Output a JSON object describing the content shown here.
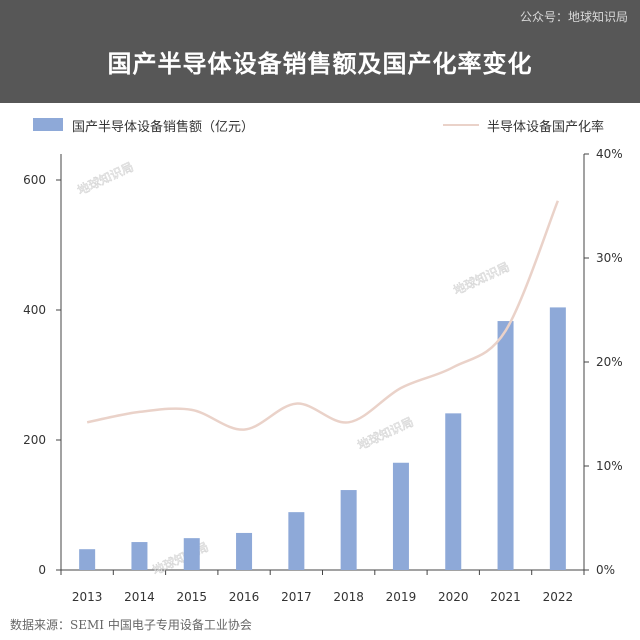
{
  "header": {
    "title": "国产半导体设备销售额及国产化率变化",
    "source_top": "公众号：地球知识局"
  },
  "legend": {
    "bar_label": "国产半导体设备销售额（亿元）",
    "line_label": "半导体设备国产化率"
  },
  "footer": {
    "source": "数据来源：SEMI 中国电子专用设备工业协会"
  },
  "watermark": "地球知识局",
  "colors": {
    "bar": "#8ea9d8",
    "line": "#ead2c9",
    "header": "#575757"
  },
  "chart_data": {
    "type": "bar",
    "title": "国产半导体设备销售额及国产化率变化",
    "categories": [
      "2013",
      "2014",
      "2015",
      "2016",
      "2017",
      "2018",
      "2019",
      "2020",
      "2021",
      "2022"
    ],
    "series": [
      {
        "name": "国产半导体设备销售额（亿元）",
        "type": "bar",
        "axis": "left",
        "values": [
          32,
          43,
          49,
          57,
          89,
          123,
          165,
          241,
          383,
          404
        ]
      },
      {
        "name": "半导体设备国产化率",
        "type": "line",
        "axis": "right",
        "values": [
          14.2,
          15.2,
          15.4,
          13.5,
          16.0,
          14.2,
          17.5,
          19.5,
          23.0,
          35.5
        ]
      }
    ],
    "y_left": {
      "min": 0,
      "max": 640,
      "ticks": [
        "0",
        "200",
        "400",
        "600"
      ],
      "tick_values": [
        0,
        200,
        400,
        600
      ]
    },
    "y_right": {
      "min": 0,
      "max": 40,
      "ticks": [
        "0%",
        "10%",
        "20%",
        "30%",
        "40%"
      ],
      "tick_values": [
        0,
        10,
        20,
        30,
        40
      ]
    },
    "grid": false,
    "legend_position": "top"
  }
}
